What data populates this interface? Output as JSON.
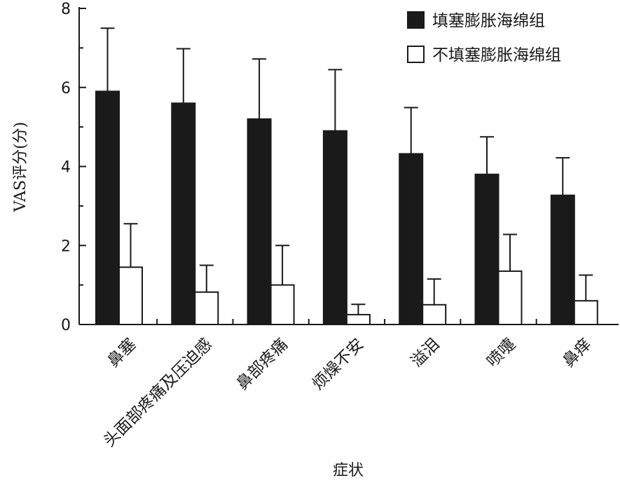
{
  "chart_data": {
    "type": "bar",
    "categories": [
      "鼻塞",
      "头面部疼痛及压迫感",
      "鼻部疼痛",
      "烦燥不安",
      "溢泪",
      "喷嚏",
      "鼻痒"
    ],
    "series": [
      {
        "name": "填塞膨胀海绵组",
        "color": "#1a1a1a",
        "values": [
          5.9,
          5.6,
          5.2,
          4.9,
          4.32,
          3.8,
          3.27
        ],
        "errors": [
          1.6,
          1.38,
          1.52,
          1.55,
          1.17,
          0.95,
          0.95
        ]
      },
      {
        "name": "不填塞膨胀海绵组",
        "color": "#ffffff",
        "values": [
          1.45,
          0.82,
          1.0,
          0.25,
          0.5,
          1.35,
          0.6
        ],
        "errors": [
          1.1,
          0.68,
          1.0,
          0.26,
          0.65,
          0.93,
          0.65
        ]
      }
    ],
    "xlabel": "症状",
    "ylabel": "VAS评分(分)",
    "ylim": [
      0,
      8
    ],
    "yticks": [
      "0",
      "2",
      "4",
      "6",
      "8"
    ],
    "grid": false,
    "legend_position": "top-right"
  }
}
